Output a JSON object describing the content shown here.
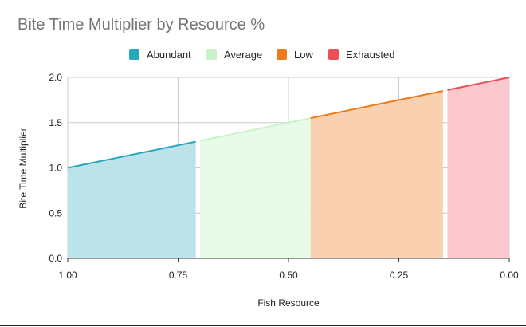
{
  "chart_data": {
    "type": "area",
    "title": "Bite Time Multiplier by Resource %",
    "xlabel": "Fish Resource",
    "ylabel": "Bite Time Multiplier",
    "xlim": [
      1.0,
      0.0
    ],
    "x_reversed": true,
    "ylim": [
      0.0,
      2.0
    ],
    "x_ticks": [
      1.0,
      0.75,
      0.5,
      0.25,
      0.0
    ],
    "x_tick_labels": [
      "1.00",
      "0.75",
      "0.50",
      "0.25",
      "0.00"
    ],
    "y_ticks": [
      0.0,
      0.5,
      1.0,
      1.5,
      2.0
    ],
    "y_tick_labels": [
      "0.0",
      "0.5",
      "1.0",
      "1.5",
      "2.0"
    ],
    "grid": true,
    "legend_position": "top-center",
    "series": [
      {
        "name": "Abundant",
        "color": "#26a9bd",
        "fill": "#bce3ea",
        "x": [
          1.0,
          0.71
        ],
        "y": [
          1.0,
          1.29
        ]
      },
      {
        "name": "Average",
        "color": "#c8f3c8",
        "fill": "#e8fbe8",
        "x": [
          0.7,
          0.45
        ],
        "y": [
          1.3,
          1.55
        ]
      },
      {
        "name": "Low",
        "color": "#ef7a1a",
        "fill": "#f9d1b1",
        "x": [
          0.45,
          0.15
        ],
        "y": [
          1.55,
          1.85
        ]
      },
      {
        "name": "Exhausted",
        "color": "#ef4d57",
        "fill": "#fac8cd",
        "x": [
          0.14,
          0.0
        ],
        "y": [
          1.86,
          2.0
        ]
      }
    ]
  }
}
